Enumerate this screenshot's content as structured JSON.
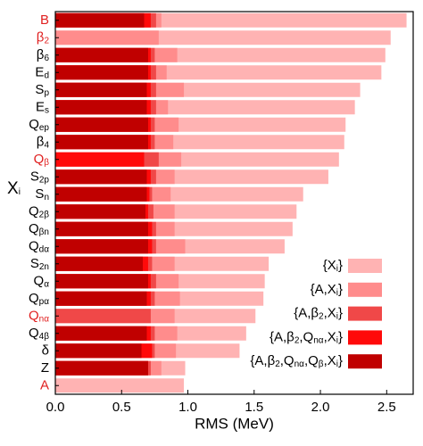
{
  "chart_data": {
    "type": "overlaid_barh",
    "xlabel": "RMS (MeV)",
    "ylabel": [
      {
        "t": "X"
      },
      {
        "s": "i"
      }
    ],
    "categories": [
      {
        "t": "B",
        "color": "#e02020"
      },
      {
        "t": "β",
        "s": "2",
        "color": "#e02020"
      },
      {
        "t": "β",
        "s": "6",
        "color": "#000000"
      },
      {
        "t": "E",
        "s": "d",
        "color": "#000000"
      },
      {
        "t": "S",
        "s": "p",
        "color": "#000000"
      },
      {
        "t": "E",
        "s": "s",
        "color": "#000000"
      },
      {
        "t": "Q",
        "s": "ep",
        "color": "#000000"
      },
      {
        "t": "β",
        "s": "4",
        "color": "#000000"
      },
      {
        "t": "Q",
        "s": "β",
        "color": "#e02020"
      },
      {
        "t": "S",
        "s": "2p",
        "color": "#000000"
      },
      {
        "t": "S",
        "s": "n",
        "color": "#000000"
      },
      {
        "t": "Q",
        "s": "2β",
        "color": "#000000"
      },
      {
        "t": "Q",
        "s": "βn",
        "color": "#000000"
      },
      {
        "t": "Q",
        "s": "dα",
        "color": "#000000"
      },
      {
        "t": "S",
        "s": "2n",
        "color": "#000000"
      },
      {
        "t": "Q",
        "s": "α",
        "color": "#000000"
      },
      {
        "t": "Q",
        "s": "pα",
        "color": "#000000"
      },
      {
        "t": "Q",
        "s": "nα",
        "color": "#e02020"
      },
      {
        "t": "Q",
        "s": "4β",
        "color": "#000000"
      },
      {
        "t": "δ",
        "color": "#000000"
      },
      {
        "t": "Z",
        "color": "#000000"
      },
      {
        "t": "A",
        "color": "#e02020"
      }
    ],
    "series": [
      {
        "name": [
          {
            "t": "{X"
          },
          {
            "s": "i"
          },
          {
            "t": "}"
          }
        ],
        "color": "#ffb3b3",
        "values": [
          2.65,
          2.53,
          2.49,
          2.46,
          2.3,
          2.26,
          2.19,
          2.18,
          2.14,
          2.06,
          1.87,
          1.82,
          1.79,
          1.73,
          1.61,
          1.58,
          1.57,
          1.51,
          1.44,
          1.39,
          0.98,
          0.97
        ]
      },
      {
        "name": [
          {
            "t": "{A,X"
          },
          {
            "s": "i"
          },
          {
            "t": "}"
          }
        ],
        "color": "#ff8c8c",
        "values": [
          0.8,
          0.78,
          0.92,
          0.84,
          0.97,
          0.85,
          0.93,
          0.89,
          0.95,
          0.9,
          0.87,
          0.9,
          0.9,
          0.98,
          0.9,
          0.93,
          0.94,
          0.9,
          0.92,
          0.91,
          0.8,
          null
        ]
      },
      {
        "name": [
          {
            "t": "{A,β"
          },
          {
            "s": "2"
          },
          {
            "t": ",X"
          },
          {
            "s": "i"
          },
          {
            "t": "}"
          }
        ],
        "color": "#f04848",
        "values": [
          0.76,
          null,
          0.75,
          0.76,
          0.76,
          0.76,
          0.75,
          0.75,
          0.78,
          0.76,
          0.73,
          0.74,
          0.76,
          0.76,
          0.73,
          0.76,
          0.75,
          0.72,
          0.75,
          0.75,
          0.72,
          null
        ]
      },
      {
        "name": [
          {
            "t": "{A,β"
          },
          {
            "s": "2"
          },
          {
            "t": ",Q"
          },
          {
            "s": "nα"
          },
          {
            "t": ",X"
          },
          {
            "s": "i"
          },
          {
            "t": "}"
          }
        ],
        "color": "#ff0a0a",
        "values": [
          0.72,
          null,
          0.72,
          0.72,
          0.72,
          0.72,
          0.72,
          0.72,
          0.67,
          0.72,
          0.71,
          0.7,
          0.73,
          0.73,
          0.7,
          0.72,
          0.72,
          null,
          0.72,
          0.73,
          0.7,
          null
        ]
      },
      {
        "name": [
          {
            "t": "{A,β"
          },
          {
            "s": "2"
          },
          {
            "t": ",Q"
          },
          {
            "s": "nα"
          },
          {
            "t": ",Q"
          },
          {
            "s": "β"
          },
          {
            "t": ",X"
          },
          {
            "s": "i"
          },
          {
            "t": "}"
          }
        ],
        "color": "#c00000",
        "values": [
          0.67,
          null,
          0.7,
          0.7,
          0.69,
          0.69,
          0.7,
          0.7,
          null,
          0.69,
          0.69,
          0.68,
          0.7,
          0.7,
          0.66,
          0.7,
          0.69,
          null,
          0.69,
          0.65,
          0.7,
          null
        ]
      }
    ],
    "xlim": [
      0,
      2.7
    ],
    "xticks": [
      {
        "value": 0,
        "label": "0.0"
      },
      0.5,
      {
        "value": 1,
        "label": "1.0"
      },
      1.5,
      {
        "value": 2,
        "label": "2.0"
      },
      2.5
    ],
    "legend": "lower right"
  }
}
